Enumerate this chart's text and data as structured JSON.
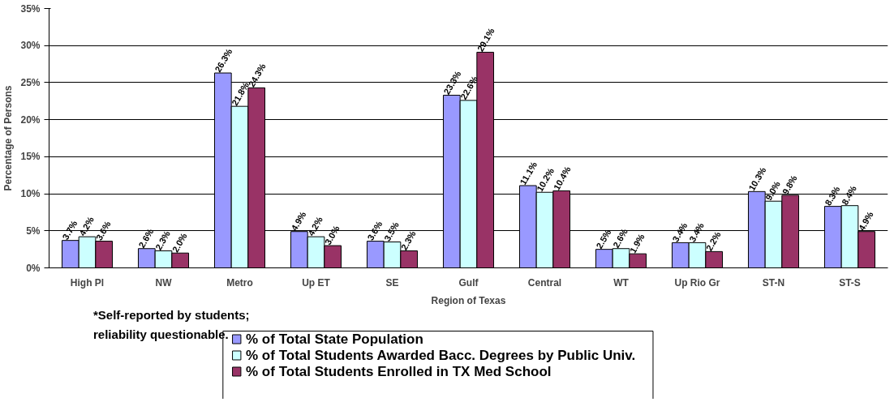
{
  "chart_data": {
    "type": "bar",
    "xlabel": "Region of Texas",
    "ylabel": "Percentage of Persons",
    "categories": [
      "High Pl",
      "NW",
      "Metro",
      "Up ET",
      "SE",
      "Gulf",
      "Central",
      "WT",
      "Up Rio Gr",
      "ST-N",
      "ST-S"
    ],
    "series": [
      {
        "name": "% of Total State Population",
        "color": "#9999ff",
        "values": [
          3.7,
          2.6,
          26.3,
          4.9,
          3.6,
          23.3,
          11.1,
          2.5,
          3.4,
          10.3,
          8.3
        ],
        "value_labels": [
          "3.7%",
          "2.6%",
          "26.3%",
          "4.9%",
          "3.6%",
          "23.3%",
          "11.1%",
          "2.5%",
          "3.4%",
          "10.3%",
          "8.3%"
        ]
      },
      {
        "name": "% of Total Students Awarded Bacc. Degrees by Public Univ.",
        "color": "#ccffff",
        "values": [
          4.2,
          2.3,
          21.8,
          4.2,
          3.5,
          22.6,
          10.2,
          2.6,
          3.4,
          9.0,
          8.4
        ],
        "value_labels": [
          "4.2%",
          "2.3%",
          "21.8%",
          "4.2%",
          "3.5%",
          "22.6%",
          "10.2%",
          "2.6%",
          "3.4%",
          "9.0%",
          "8.4%"
        ]
      },
      {
        "name": "% of Total Students Enrolled in TX Med School",
        "color": "#993366",
        "values": [
          3.6,
          2.0,
          24.3,
          3.0,
          2.3,
          29.1,
          10.4,
          1.9,
          2.2,
          9.8,
          4.9
        ],
        "value_labels": [
          "3.6%",
          "2.0%",
          "24.3%",
          "3.0%",
          "2.3%",
          "29.1%",
          "10.4%",
          "1.9%",
          "2.2%",
          "9.8%",
          "4.9%"
        ]
      }
    ],
    "ylim": [
      0,
      35
    ],
    "yticks": [
      {
        "value": 0,
        "label": "0%"
      },
      {
        "value": 5,
        "label": "5%"
      },
      {
        "value": 10,
        "label": "10%"
      },
      {
        "value": 15,
        "label": "15%"
      },
      {
        "value": 20,
        "label": "20%"
      },
      {
        "value": 25,
        "label": "25%"
      },
      {
        "value": 30,
        "label": "30%"
      },
      {
        "value": 35,
        "label": "35%"
      }
    ],
    "grid": "y",
    "legend": "bottom",
    "annotations": [
      "*Self-reported by students; reliability questionable."
    ]
  }
}
